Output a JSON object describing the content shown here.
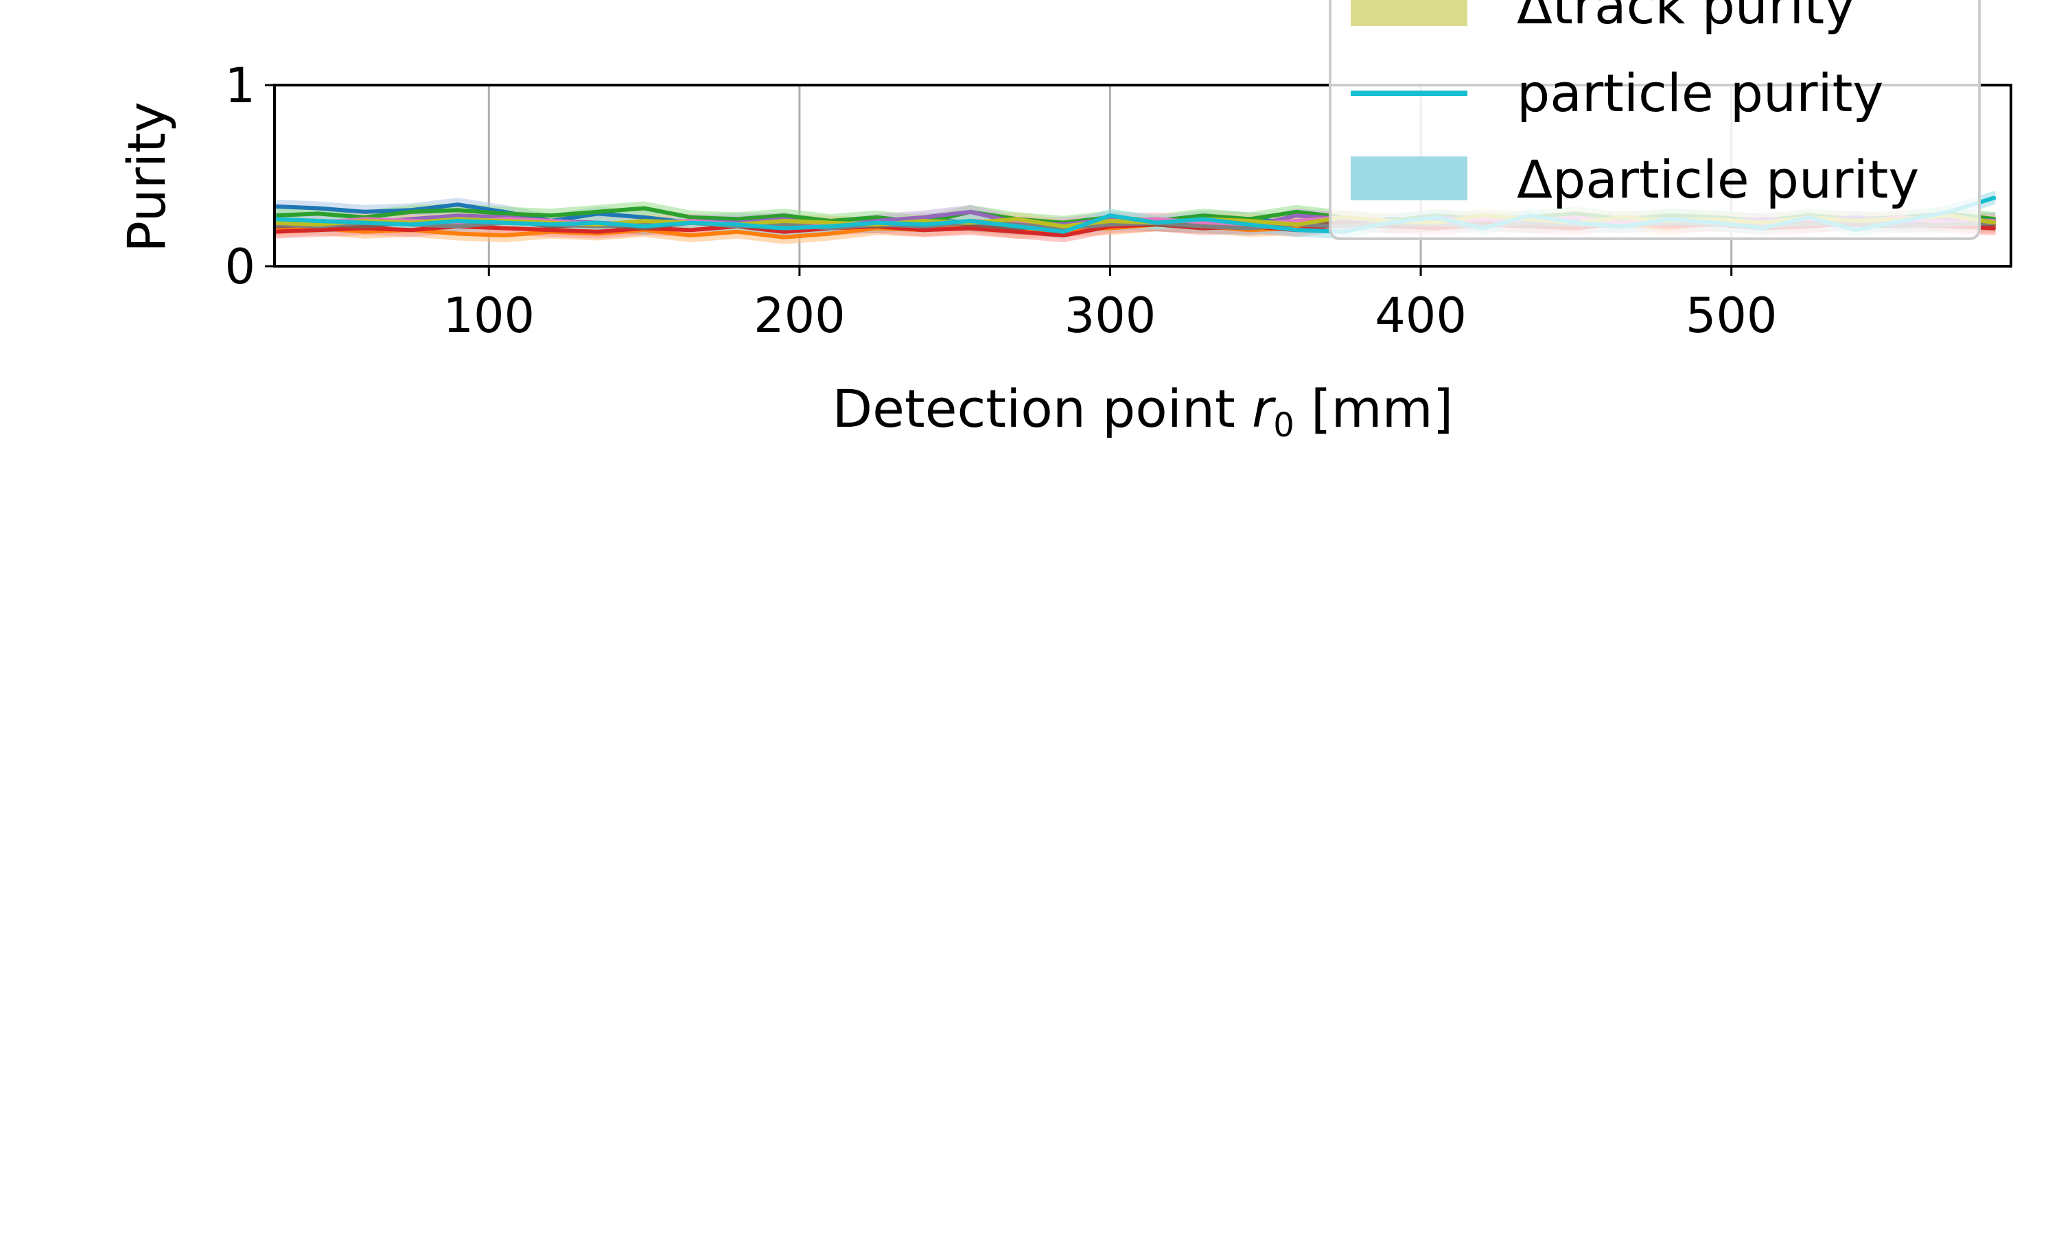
{
  "chart_data": {
    "type": "line",
    "title": "",
    "xlabel_main": "Detection point ",
    "xlabel_var": "r",
    "xlabel_sub": "0",
    "xlabel_unit": " [mm]",
    "ylabel": "Purity",
    "xlim": [
      31,
      590
    ],
    "ylim": [
      0,
      1
    ],
    "xticks": [
      100,
      200,
      300,
      400,
      500
    ],
    "yticks": [
      0,
      1
    ],
    "grid": "x-only",
    "legend_placement": "top-right",
    "legend": [
      {
        "label": "Δtrack purity",
        "kind": "patch",
        "color": "#dbdb8d"
      },
      {
        "label": "particle purity",
        "kind": "line",
        "color": "#17becf"
      },
      {
        "label": "Δparticle purity",
        "kind": "patch",
        "color": "#9edae5"
      }
    ],
    "series_colors": [
      "#1f77b4",
      "#ff7f0e",
      "#2ca02c",
      "#d62728",
      "#9467bd",
      "#8c564b",
      "#e377c2",
      "#7f7f7f",
      "#bcbd22",
      "#17becf"
    ],
    "band_colors": [
      "#aec7e8",
      "#ffbb78",
      "#98df8a",
      "#ff9896",
      "#c5b0d5",
      "#c49c94",
      "#f7b6d2",
      "#c7c7c7",
      "#dbdb8d",
      "#9edae5"
    ],
    "x": [
      31,
      45,
      60,
      75,
      90,
      105,
      120,
      135,
      150,
      165,
      180,
      195,
      210,
      225,
      240,
      255,
      270,
      285,
      300,
      315,
      330,
      345,
      360,
      375,
      390,
      405,
      420,
      435,
      450,
      465,
      480,
      495,
      510,
      525,
      540,
      555,
      570,
      585
    ],
    "series": [
      {
        "values": [
          0.33,
          0.32,
          0.3,
          0.31,
          0.34,
          0.3,
          0.25,
          0.29,
          0.27,
          0.24,
          0.26,
          0.25,
          0.24,
          0.23,
          0.26,
          0.24,
          0.23,
          0.22,
          0.25,
          0.24,
          0.27,
          0.26,
          0.24,
          0.23,
          0.26,
          0.25,
          0.27,
          0.24,
          0.26,
          0.25,
          0.28,
          0.27,
          0.25,
          0.26,
          0.24,
          0.27,
          0.25,
          0.26
        ]
      },
      {
        "values": [
          0.2,
          0.21,
          0.19,
          0.2,
          0.18,
          0.17,
          0.19,
          0.18,
          0.2,
          0.17,
          0.19,
          0.16,
          0.18,
          0.21,
          0.2,
          0.22,
          0.19,
          0.2,
          0.21,
          0.23,
          0.22,
          0.2,
          0.21,
          0.24,
          0.22,
          0.23,
          0.25,
          0.24,
          0.22,
          0.23,
          0.21,
          0.24,
          0.23,
          0.22,
          0.24,
          0.25,
          0.23,
          0.22
        ]
      },
      {
        "values": [
          0.28,
          0.29,
          0.27,
          0.3,
          0.31,
          0.29,
          0.28,
          0.3,
          0.32,
          0.27,
          0.26,
          0.28,
          0.25,
          0.27,
          0.24,
          0.3,
          0.26,
          0.24,
          0.27,
          0.25,
          0.28,
          0.26,
          0.3,
          0.27,
          0.25,
          0.28,
          0.26,
          0.27,
          0.29,
          0.26,
          0.28,
          0.27,
          0.25,
          0.28,
          0.26,
          0.27,
          0.29,
          0.26
        ]
      },
      {
        "values": [
          0.19,
          0.2,
          0.21,
          0.2,
          0.22,
          0.21,
          0.2,
          0.19,
          0.21,
          0.2,
          0.22,
          0.19,
          0.21,
          0.22,
          0.2,
          0.21,
          0.19,
          0.17,
          0.22,
          0.23,
          0.21,
          0.22,
          0.2,
          0.23,
          0.22,
          0.21,
          0.23,
          0.22,
          0.21,
          0.24,
          0.22,
          0.23,
          0.21,
          0.22,
          0.24,
          0.23,
          0.22,
          0.21
        ]
      },
      {
        "values": [
          0.26,
          0.25,
          0.24,
          0.26,
          0.28,
          0.27,
          0.25,
          0.24,
          0.23,
          0.25,
          0.24,
          0.26,
          0.22,
          0.25,
          0.27,
          0.3,
          0.24,
          0.23,
          0.26,
          0.24,
          0.25,
          0.22,
          0.28,
          0.26,
          0.24,
          0.27,
          0.25,
          0.26,
          0.24,
          0.27,
          0.25,
          0.24,
          0.26,
          0.25,
          0.27,
          0.24,
          0.26,
          0.25
        ]
      },
      {
        "values": [
          0.22,
          0.23,
          0.22,
          0.24,
          0.23,
          0.25,
          0.22,
          0.23,
          0.21,
          0.24,
          0.22,
          0.21,
          0.23,
          0.22,
          0.24,
          0.23,
          0.21,
          0.22,
          0.24,
          0.23,
          0.22,
          0.21,
          0.23,
          0.24,
          0.22,
          0.23,
          0.24,
          0.22,
          0.23,
          0.22,
          0.24,
          0.23,
          0.22,
          0.24,
          0.23,
          0.22,
          0.24,
          0.23
        ]
      },
      {
        "values": [
          0.25,
          0.24,
          0.26,
          0.25,
          0.24,
          0.26,
          0.25,
          0.23,
          0.24,
          0.25,
          0.23,
          0.24,
          0.22,
          0.24,
          0.23,
          0.25,
          0.24,
          0.22,
          0.25,
          0.26,
          0.24,
          0.23,
          0.25,
          0.27,
          0.25,
          0.24,
          0.26,
          0.25,
          0.27,
          0.24,
          0.26,
          0.25,
          0.24,
          0.26,
          0.25,
          0.27,
          0.24,
          0.25
        ]
      },
      {
        "values": [
          0.23,
          0.22,
          0.24,
          0.23,
          0.22,
          0.24,
          0.23,
          0.22,
          0.23,
          0.24,
          0.22,
          0.23,
          0.21,
          0.23,
          0.22,
          0.24,
          0.23,
          0.21,
          0.23,
          0.24,
          0.22,
          0.21,
          0.23,
          0.22,
          0.24,
          0.23,
          0.22,
          0.24,
          0.23,
          0.22,
          0.24,
          0.23,
          0.22,
          0.23,
          0.24,
          0.22,
          0.23,
          0.24
        ]
      },
      {
        "values": [
          0.24,
          0.23,
          0.25,
          0.24,
          0.26,
          0.25,
          0.24,
          0.23,
          0.25,
          0.24,
          0.23,
          0.25,
          0.24,
          0.23,
          0.25,
          0.24,
          0.26,
          0.22,
          0.25,
          0.24,
          0.26,
          0.25,
          0.23,
          0.27,
          0.25,
          0.24,
          0.28,
          0.26,
          0.24,
          0.27,
          0.25,
          0.26,
          0.24,
          0.27,
          0.25,
          0.26,
          0.28,
          0.24
        ]
      },
      {
        "values": [
          0.26,
          0.25,
          0.24,
          0.23,
          0.25,
          0.24,
          0.23,
          0.24,
          0.22,
          0.24,
          0.23,
          0.21,
          0.22,
          0.24,
          0.23,
          0.25,
          0.22,
          0.19,
          0.28,
          0.24,
          0.26,
          0.23,
          0.2,
          0.19,
          0.24,
          0.27,
          0.21,
          0.28,
          0.24,
          0.22,
          0.26,
          0.24,
          0.21,
          0.27,
          0.2,
          0.25,
          0.3,
          0.38
        ]
      }
    ]
  }
}
